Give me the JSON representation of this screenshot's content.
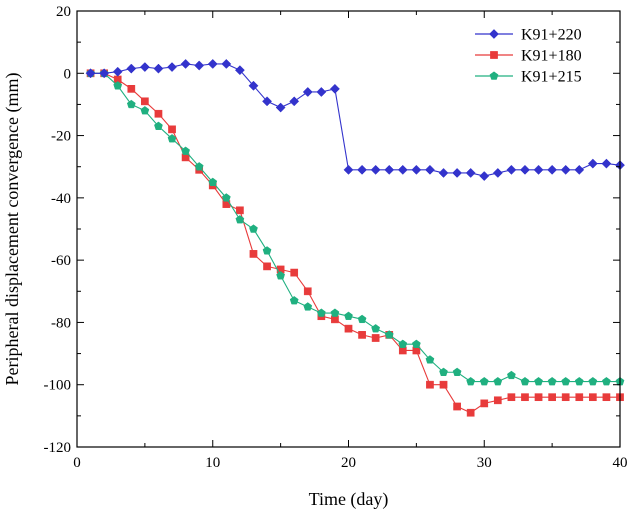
{
  "chart_data": {
    "type": "line",
    "title": "",
    "xlabel": "Time (day)",
    "ylabel": "Peripheral displacement convergence (mm)",
    "xlim": [
      0,
      40
    ],
    "ylim": [
      -120,
      20
    ],
    "xticks": [
      0,
      10,
      20,
      30,
      40
    ],
    "yticks": [
      20,
      0,
      -20,
      -40,
      -60,
      -80,
      -100,
      -120
    ],
    "grid": false,
    "legend_position": "top-right",
    "series": [
      {
        "name": "K91+220",
        "color": "#3333cc",
        "marker": "diamond",
        "x": [
          1,
          2,
          3,
          4,
          5,
          6,
          7,
          8,
          9,
          10,
          11,
          12,
          13,
          14,
          15,
          16,
          17,
          18,
          19,
          20,
          21,
          22,
          23,
          24,
          25,
          26,
          27,
          28,
          29,
          30,
          31,
          32,
          33,
          34,
          35,
          36,
          37,
          38,
          39,
          40
        ],
        "y": [
          0,
          0,
          0.5,
          1.5,
          2,
          1.5,
          2,
          3,
          2.5,
          3,
          3,
          1,
          -4,
          -9,
          -11,
          -9,
          -6,
          -6,
          -5,
          -31,
          -31,
          -31,
          -31,
          -31,
          -31,
          -31,
          -32,
          -32,
          -32,
          -33,
          -32,
          -31,
          -31,
          -31,
          -31,
          -31,
          -31,
          -29,
          -29,
          -29.5
        ]
      },
      {
        "name": "K91+180",
        "color": "#e83b3b",
        "marker": "square",
        "x": [
          1,
          2,
          3,
          4,
          5,
          6,
          7,
          8,
          9,
          10,
          11,
          12,
          13,
          14,
          15,
          16,
          17,
          18,
          19,
          20,
          21,
          22,
          23,
          24,
          25,
          26,
          27,
          28,
          29,
          30,
          31,
          32,
          33,
          34,
          35,
          36,
          37,
          38,
          39,
          40
        ],
        "y": [
          0,
          0,
          -2,
          -5,
          -9,
          -13,
          -18,
          -27,
          -31,
          -36,
          -42,
          -44,
          -58,
          -62,
          -63,
          -64,
          -70,
          -78,
          -79,
          -82,
          -84,
          -85,
          -84,
          -89,
          -89,
          -100,
          -100,
          -107,
          -109,
          -106,
          -105,
          -104,
          -104,
          -104,
          -104,
          -104,
          -104,
          -104,
          -104,
          -104
        ]
      },
      {
        "name": "K91+215",
        "color": "#20b080",
        "marker": "pentagon",
        "x": [
          1,
          2,
          3,
          4,
          5,
          6,
          7,
          8,
          9,
          10,
          11,
          12,
          13,
          14,
          15,
          16,
          17,
          18,
          19,
          20,
          21,
          22,
          23,
          24,
          25,
          26,
          27,
          28,
          29,
          30,
          31,
          32,
          33,
          34,
          35,
          36,
          37,
          38,
          39,
          40
        ],
        "y": [
          0,
          0,
          -4,
          -10,
          -12,
          -17,
          -21,
          -25,
          -30,
          -35,
          -40,
          -47,
          -50,
          -57,
          -65,
          -73,
          -75,
          -77,
          -77,
          -78,
          -79,
          -82,
          -84,
          -87,
          -87,
          -92,
          -96,
          -96,
          -99,
          -99,
          -99,
          -97,
          -99,
          -99,
          -99,
          -99,
          -99,
          -99,
          -99,
          -99
        ]
      }
    ]
  }
}
